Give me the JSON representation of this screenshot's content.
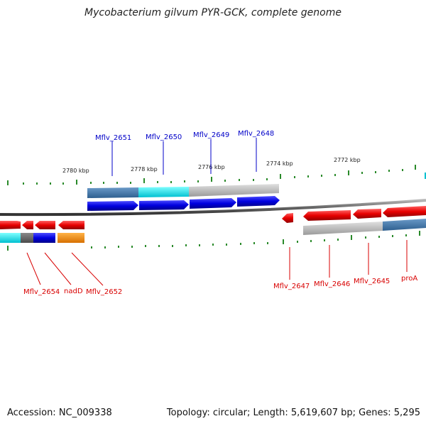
{
  "title": "Mycobacterium gilvum PYR-GCK, complete genome",
  "footer": {
    "accession": "Accession: NC_009338",
    "summary": "Topology: circular; Length: 5,619,607 bp; Genes: 5,295"
  },
  "colors": {
    "forward_label": "#0000c8",
    "reverse_label": "#d80000",
    "tick": "#2a8a2a",
    "backbone": "#777777"
  },
  "scale_labels": [
    "2780 kbp",
    "2778 kbp",
    "2776 kbp",
    "2774 kbp",
    "2772 kbp"
  ],
  "forward_genes": [
    "Mflv_2651",
    "Mflv_2650",
    "Mflv_2649",
    "Mflv_2648"
  ],
  "reverse_genes": [
    "Mflv_2654",
    "nadD",
    "Mflv_2652",
    "Mflv_2647",
    "Mflv_2646",
    "Mflv_2645",
    "proA"
  ]
}
